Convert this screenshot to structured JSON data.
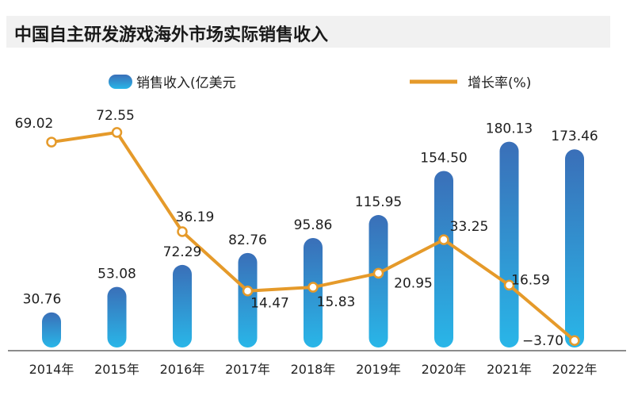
{
  "title": "中国自主研发游戏海外市场实际销售收入",
  "legend": {
    "bar_label": "销售收入(亿美元",
    "line_label": "增长率(%)"
  },
  "colors": {
    "bar_top": "#3a6fb8",
    "bar_bottom": "#29b6e8",
    "line": "#e59a2a",
    "marker_fill": "#ffffff"
  },
  "chart_data": {
    "type": "bar",
    "categories": [
      "2014年",
      "2015年",
      "2016年",
      "2017年",
      "2018年",
      "2019年",
      "2020年",
      "2021年",
      "2022年"
    ],
    "series": [
      {
        "name": "销售收入(亿美元",
        "type": "bar",
        "values": [
          30.76,
          53.08,
          72.29,
          82.76,
          95.86,
          115.95,
          154.5,
          180.13,
          173.46
        ],
        "labels": [
          "30.76",
          "53.08",
          "72.29",
          "82.76",
          "95.86",
          "115.95",
          "154.50",
          "180.13",
          "173.46"
        ]
      },
      {
        "name": "增长率(%)",
        "type": "line",
        "values": [
          69.02,
          72.55,
          36.19,
          14.47,
          15.83,
          20.95,
          33.25,
          16.59,
          -3.7
        ],
        "labels": [
          "69.02",
          "72.55",
          "36.19",
          "14.47",
          "15.83",
          "20.95",
          "33.25",
          "16.59",
          "−3.70"
        ]
      }
    ],
    "legend_position": "top",
    "grid": false
  }
}
